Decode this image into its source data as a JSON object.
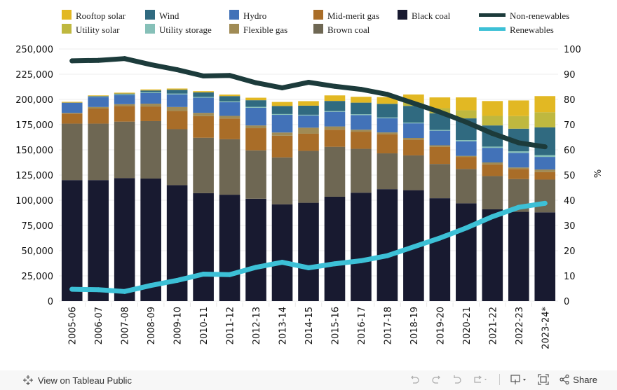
{
  "legend": {
    "items": [
      {
        "label": "Rooftop solar",
        "color": "#e2b823",
        "kind": "swatch"
      },
      {
        "label": "Utility solar",
        "color": "#bfb83f",
        "kind": "swatch"
      },
      {
        "label": "Wind",
        "color": "#306a80",
        "kind": "swatch"
      },
      {
        "label": "Utility storage",
        "color": "#86c0b8",
        "kind": "swatch"
      },
      {
        "label": "Hydro",
        "color": "#4272b8",
        "kind": "swatch"
      },
      {
        "label": "Flexible gas",
        "color": "#a08b55",
        "kind": "swatch"
      },
      {
        "label": "Mid-merit gas",
        "color": "#a96d28",
        "kind": "swatch"
      },
      {
        "label": "Brown coal",
        "color": "#6e6753",
        "kind": "swatch"
      },
      {
        "label": "Black coal",
        "color": "#181a30",
        "kind": "swatch"
      },
      {
        "label": "Non-renewables",
        "color": "#1c3b3b",
        "kind": "line"
      },
      {
        "label": "Renewables",
        "color": "#3cc0d6",
        "kind": "line"
      }
    ]
  },
  "chart_data": {
    "type": "bar",
    "stacked": true,
    "title": "",
    "xlabel": "",
    "ylabel": "",
    "y2label": "%",
    "ylim": [
      0,
      250000
    ],
    "y2lim": [
      0,
      100
    ],
    "yticks": [
      "0",
      "25,000",
      "50,000",
      "75,000",
      "100,000",
      "125,000",
      "150,000",
      "175,000",
      "200,000",
      "225,000",
      "250,000"
    ],
    "y2ticks": [
      "0",
      "10",
      "20",
      "30",
      "40",
      "50",
      "60",
      "70",
      "80",
      "90",
      "100"
    ],
    "grid": true,
    "legend_position": "top",
    "categories": [
      "2005-06",
      "2006-07",
      "2007-08",
      "2008-09",
      "2009-10",
      "2010-11",
      "2011-12",
      "2012-13",
      "2013-14",
      "2014-15",
      "2015-16",
      "2016-17",
      "2017-18",
      "2018-19",
      "2019-20",
      "2020-21",
      "2021-22",
      "2022-23",
      "2023-24*"
    ],
    "series": [
      {
        "name": "Black coal",
        "color": "#181a30",
        "values": [
          120000,
          120000,
          122000,
          121500,
          115000,
          107000,
          105500,
          101500,
          96000,
          97500,
          103500,
          107500,
          111000,
          110000,
          102000,
          97000,
          91000,
          88500,
          88000
        ]
      },
      {
        "name": "Brown coal",
        "color": "#6e6753",
        "values": [
          56000,
          56000,
          56000,
          57000,
          55500,
          55000,
          55000,
          48000,
          46500,
          51500,
          49500,
          43500,
          35500,
          34500,
          34000,
          34000,
          33000,
          32500,
          32500
        ]
      },
      {
        "name": "Mid-merit gas",
        "color": "#a96d28",
        "values": [
          10000,
          15000,
          15500,
          14500,
          18000,
          21500,
          20500,
          22000,
          21500,
          17000,
          17000,
          17000,
          19000,
          15500,
          17000,
          12000,
          11500,
          10000,
          7500
        ]
      },
      {
        "name": "Flexible gas",
        "color": "#a08b55",
        "values": [
          600,
          1500,
          1800,
          2800,
          4000,
          3200,
          2700,
          2700,
          3200,
          6000,
          3200,
          2000,
          1800,
          1800,
          1500,
          1000,
          2000,
          1500,
          2500
        ]
      },
      {
        "name": "Hydro",
        "color": "#4272b8",
        "values": [
          10200,
          10000,
          9000,
          10500,
          12500,
          15000,
          13500,
          17500,
          17500,
          12000,
          14500,
          14500,
          14000,
          14500,
          14500,
          14500,
          14500,
          14500,
          12500
        ]
      },
      {
        "name": "Utility storage",
        "color": "#86c0b8",
        "values": [
          0,
          300,
          700,
          800,
          800,
          800,
          900,
          1000,
          800,
          800,
          800,
          800,
          800,
          800,
          800,
          1200,
          1200,
          1500,
          1800
        ]
      },
      {
        "name": "Wind",
        "color": "#306a80",
        "values": [
          0,
          500,
          800,
          1800,
          3800,
          4500,
          5200,
          6500,
          8000,
          9000,
          10000,
          11500,
          13500,
          16500,
          16500,
          21500,
          21000,
          22500,
          27500
        ]
      },
      {
        "name": "Utility solar",
        "color": "#bfb83f",
        "values": [
          0,
          0,
          0,
          0,
          0,
          0,
          0,
          0,
          0,
          0,
          0,
          0,
          200,
          3300,
          5000,
          8000,
          9500,
          12500,
          15000
        ]
      },
      {
        "name": "Rooftop solar",
        "color": "#e2b823",
        "values": [
          800,
          700,
          900,
          1000,
          1200,
          1200,
          1500,
          2500,
          4000,
          4500,
          5500,
          5800,
          6500,
          8000,
          10700,
          12800,
          14700,
          15500,
          16000
        ]
      }
    ],
    "lines": [
      {
        "name": "Non-renewables",
        "axis": "right",
        "color": "#1c3b3b",
        "values": [
          95.3,
          95.5,
          96.2,
          93.8,
          91.8,
          89.3,
          89.5,
          86.6,
          84.6,
          86.8,
          85.2,
          84.0,
          82.0,
          78.5,
          75.0,
          71.0,
          66.5,
          62.8,
          61.2
        ]
      },
      {
        "name": "Renewables",
        "axis": "right",
        "color": "#3cc0d6",
        "values": [
          4.7,
          4.5,
          3.8,
          6.2,
          8.2,
          10.7,
          10.5,
          13.4,
          15.4,
          13.2,
          14.8,
          16.0,
          18.0,
          21.5,
          25.0,
          29.0,
          33.5,
          37.2,
          38.8
        ]
      }
    ]
  },
  "footer": {
    "view_label": "View on Tableau Public",
    "share_label": "Share",
    "icons": [
      "tableau-logo-icon",
      "undo-icon",
      "redo-icon",
      "revert-icon",
      "refresh-icon",
      "download-icon",
      "fullscreen-icon",
      "share-icon"
    ]
  }
}
